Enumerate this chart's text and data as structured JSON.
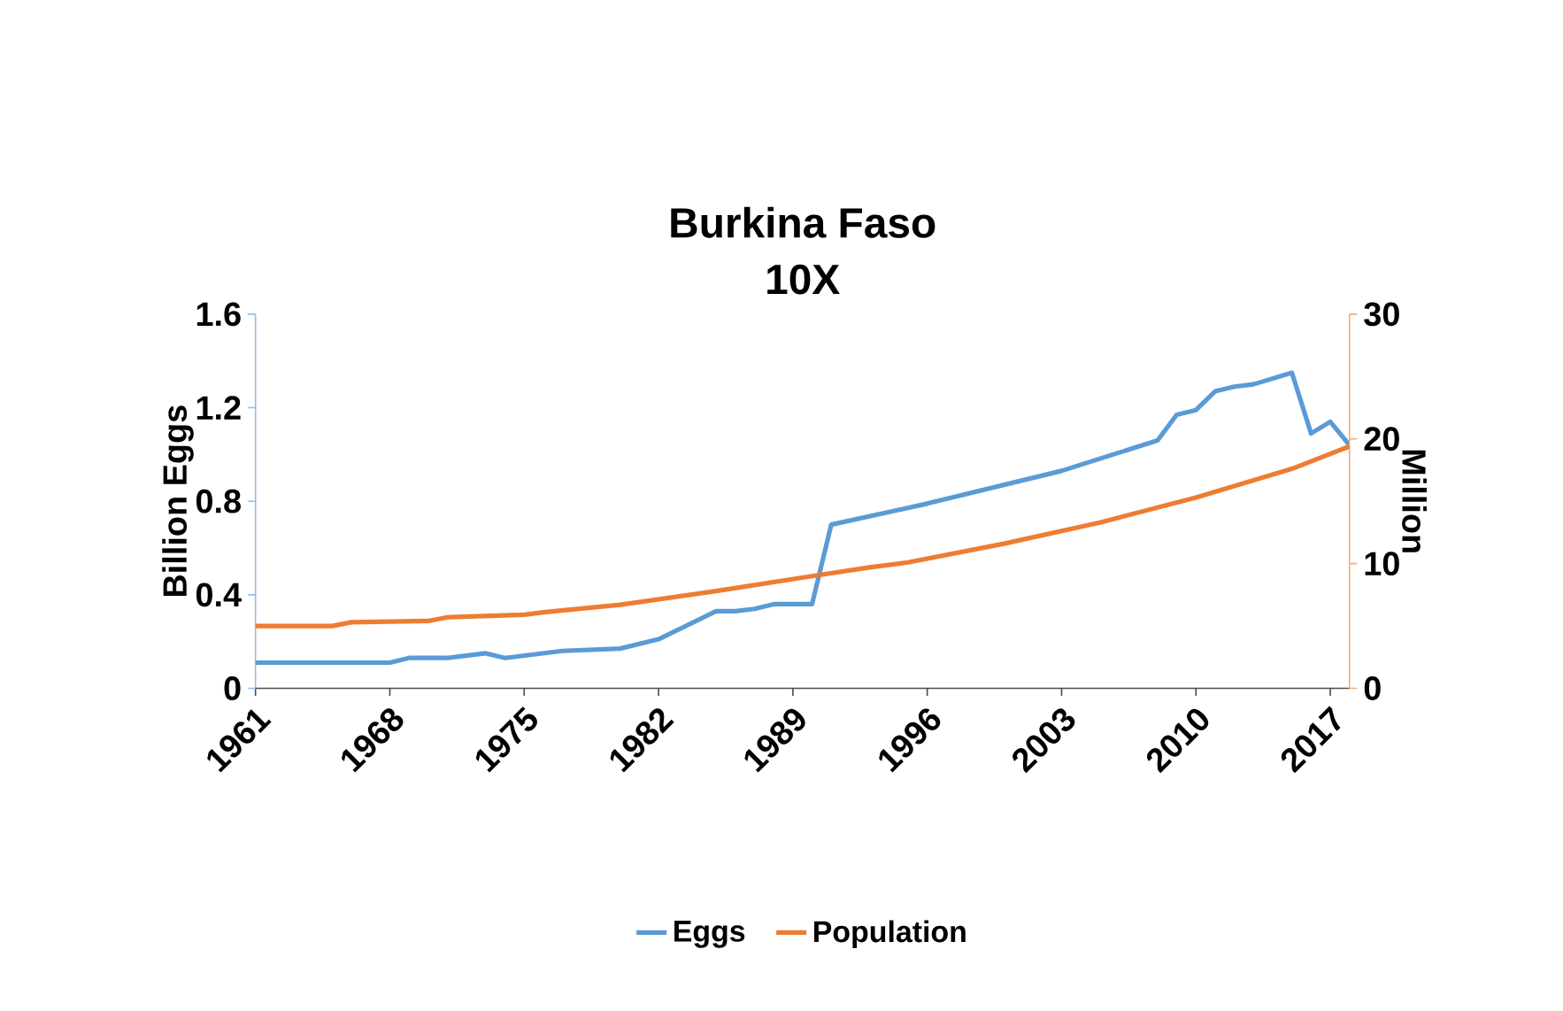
{
  "chart_data": {
    "type": "line",
    "title": "Burkina Faso",
    "subtitle": "10X",
    "ylabel": "Billion Eggs",
    "y2label": "Million",
    "xlim": [
      1961,
      2018
    ],
    "xticks": [
      1961,
      1968,
      1975,
      1982,
      1989,
      1996,
      2003,
      2010,
      2017
    ],
    "ylim": [
      0,
      1.6
    ],
    "yticks": [
      0,
      0.4,
      0.8,
      1.2,
      1.6
    ],
    "y2lim": [
      0,
      30
    ],
    "y2ticks": [
      0,
      10,
      20,
      30
    ],
    "grid": false,
    "legend": "bottom",
    "series": [
      {
        "name": "Eggs",
        "color": "#5b9bd5",
        "x": [
          1961,
          1968,
          1969,
          1971,
          1973,
          1974,
          1975,
          1977,
          1980,
          1982,
          1985,
          1986,
          1987,
          1988,
          1990,
          1991,
          1996,
          2003,
          2008,
          2009,
          2010,
          2011,
          2012,
          2013,
          2015,
          2016,
          2017,
          2018
        ],
        "values": [
          0.11,
          0.11,
          0.13,
          0.13,
          0.15,
          0.13,
          0.14,
          0.16,
          0.17,
          0.21,
          0.33,
          0.33,
          0.34,
          0.36,
          0.36,
          0.7,
          0.79,
          0.93,
          1.06,
          1.17,
          1.19,
          1.27,
          1.29,
          1.3,
          1.35,
          1.09,
          1.14,
          1.04
        ]
      },
      {
        "name": "Population",
        "color": "#ed7d31",
        "axis": "y2",
        "x": [
          1961,
          1965,
          1966,
          1970,
          1971,
          1975,
          1976,
          1980,
          1985,
          1990,
          1993,
          1995,
          2000,
          2005,
          2010,
          2015,
          2018
        ],
        "values": [
          5.0,
          5.0,
          5.3,
          5.4,
          5.7,
          5.9,
          6.1,
          6.7,
          7.8,
          9.0,
          9.7,
          10.1,
          11.6,
          13.3,
          15.3,
          17.6,
          19.4
        ]
      }
    ]
  }
}
